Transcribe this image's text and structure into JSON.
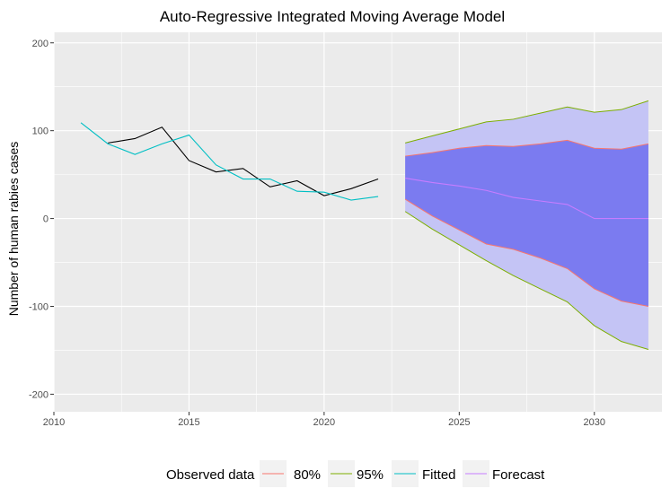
{
  "chart_data": {
    "type": "line",
    "title": "Auto-Regressive Integrated Moving Average Model",
    "xlabel": "",
    "ylabel": "Number of human rabies cases",
    "xlim": [
      2010,
      2032.5
    ],
    "ylim": [
      -220,
      212
    ],
    "x_ticks": [
      "2010",
      "2015",
      "2020",
      "2025",
      "2030"
    ],
    "y_ticks": [
      "-200",
      "-100",
      "0",
      "100",
      "200"
    ],
    "grid": true,
    "legend_position": "bottom",
    "legend_title": "Observed data",
    "colors": {
      "observed": "#000000",
      "fitted": "#00bfc4",
      "forecast": "#c77cff",
      "band80_line": "#f8766d",
      "band95_line": "#7cae00",
      "band80_fill": "#7b7bf0",
      "band95_fill": "#c4c4f5",
      "panel_bg": "#ebebeb",
      "grid": "#ffffff"
    },
    "series": [
      {
        "role": "observed",
        "x": [
          2012,
          2013,
          2014,
          2015,
          2016,
          2017,
          2018,
          2019,
          2020,
          2021,
          2022
        ],
        "y": [
          86,
          91,
          104,
          66,
          53,
          57,
          36,
          43,
          26,
          34,
          45
        ]
      },
      {
        "name": "Fitted",
        "role": "fitted",
        "x": [
          2011,
          2012,
          2013,
          2014,
          2015,
          2016,
          2017,
          2018,
          2019,
          2020,
          2021,
          2022
        ],
        "y": [
          109,
          85,
          73,
          85,
          95,
          61,
          45,
          45,
          31,
          30,
          21,
          25
        ]
      },
      {
        "name": "Forecast",
        "role": "forecast",
        "x": [
          2023,
          2024,
          2025,
          2026,
          2027,
          2028,
          2029,
          2030,
          2031,
          2032
        ],
        "y": [
          46,
          41,
          37,
          32,
          24,
          20,
          16,
          0,
          0,
          0
        ]
      }
    ],
    "bands": [
      {
        "name": "95%",
        "x": [
          2023,
          2024,
          2025,
          2026,
          2027,
          2028,
          2029,
          2030,
          2031,
          2032
        ],
        "lower": [
          8,
          -12,
          -30,
          -48,
          -65,
          -80,
          -95,
          -122,
          -140,
          -149
        ],
        "upper": [
          86,
          94,
          102,
          110,
          113,
          120,
          127,
          121,
          124,
          134
        ]
      },
      {
        "name": "80%",
        "x": [
          2023,
          2024,
          2025,
          2026,
          2027,
          2028,
          2029,
          2030,
          2031,
          2032
        ],
        "lower": [
          22,
          3,
          -13,
          -29,
          -35,
          -45,
          -57,
          -80,
          -94,
          -100
        ],
        "upper": [
          71,
          75,
          80,
          83,
          82,
          85,
          89,
          80,
          79,
          85
        ]
      }
    ],
    "legend": [
      {
        "label": "80%",
        "role": "band80_line"
      },
      {
        "label": "95%",
        "role": "band95_line"
      },
      {
        "label": "Fitted",
        "role": "fitted"
      },
      {
        "label": "Forecast",
        "role": "forecast"
      }
    ]
  }
}
